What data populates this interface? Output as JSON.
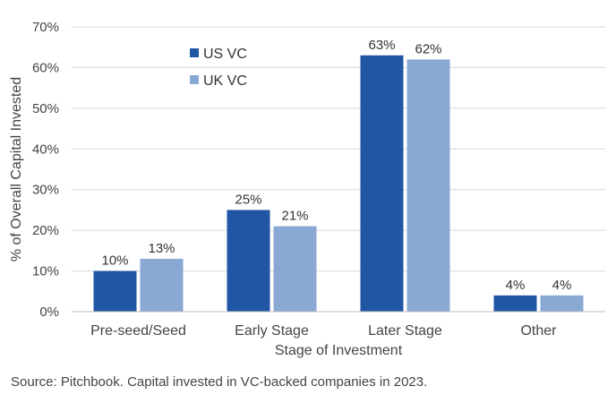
{
  "chart_data": {
    "type": "bar",
    "categories": [
      "Pre-seed/Seed",
      "Early Stage",
      "Later Stage",
      "Other"
    ],
    "series": [
      {
        "name": "US VC",
        "values": [
          10,
          25,
          63,
          4
        ],
        "labels": [
          "10%",
          "25%",
          "63%",
          "4%"
        ],
        "color": "#2156a5"
      },
      {
        "name": "UK VC",
        "values": [
          13,
          21,
          62,
          4
        ],
        "labels": [
          "13%",
          "21%",
          "62%",
          "4%"
        ],
        "color": "#8aa8d4"
      }
    ],
    "xlabel": "Stage of Investment",
    "ylabel": "% of Overall Capital Invested",
    "ylim": [
      0,
      70
    ],
    "yticks": [
      0,
      10,
      20,
      30,
      40,
      50,
      60,
      70
    ],
    "ytick_labels": [
      "0%",
      "10%",
      "20%",
      "30%",
      "40%",
      "50%",
      "60%",
      "70%"
    ],
    "grid": true,
    "legend": "top-left"
  },
  "source_note": "Source: Pitchbook.  Capital invested in VC-backed companies in 2023."
}
